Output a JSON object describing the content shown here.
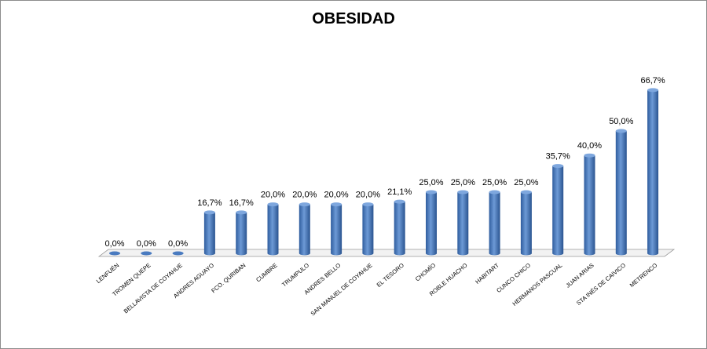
{
  "chart_data": {
    "type": "bar",
    "title": "OBESIDAD",
    "xlabel": "",
    "ylabel": "",
    "ylim": [
      0,
      100
    ],
    "grid": false,
    "legend": "none",
    "bar_color": "#4a7bc0",
    "categories": [
      "LENFUÉN",
      "TROMEN QUEPE",
      "BELLAVISTA DE COYAHUE",
      "ANDRES AGUAYO",
      "FCO. QURIBAN",
      "CUMBRE",
      "TRUMPULO",
      "ANDRES BELLO",
      "SAN MANUEL DE COYAHUE",
      "EL TESORO",
      "CHOMÍO",
      "ROBLE HUACHO",
      "HABITART",
      "CUNCO CHICO",
      "HERMANOS PASCUAL",
      "JUAN ARIAS",
      "STA INÉS DE CAIVICO",
      "METRENCO"
    ],
    "values": [
      0.0,
      0.0,
      0.0,
      16.7,
      16.7,
      20.0,
      20.0,
      20.0,
      20.0,
      21.1,
      25.0,
      25.0,
      25.0,
      25.0,
      35.7,
      40.0,
      50.0,
      66.7
    ],
    "data_labels": [
      "0,0%",
      "0,0%",
      "0,0%",
      "16,7%",
      "16,7%",
      "20,0%",
      "20,0%",
      "20,0%",
      "20,0%",
      "21,1%",
      "25,0%",
      "25,0%",
      "25,0%",
      "25,0%",
      "35,7%",
      "40,0%",
      "50,0%",
      "66,7%"
    ]
  }
}
